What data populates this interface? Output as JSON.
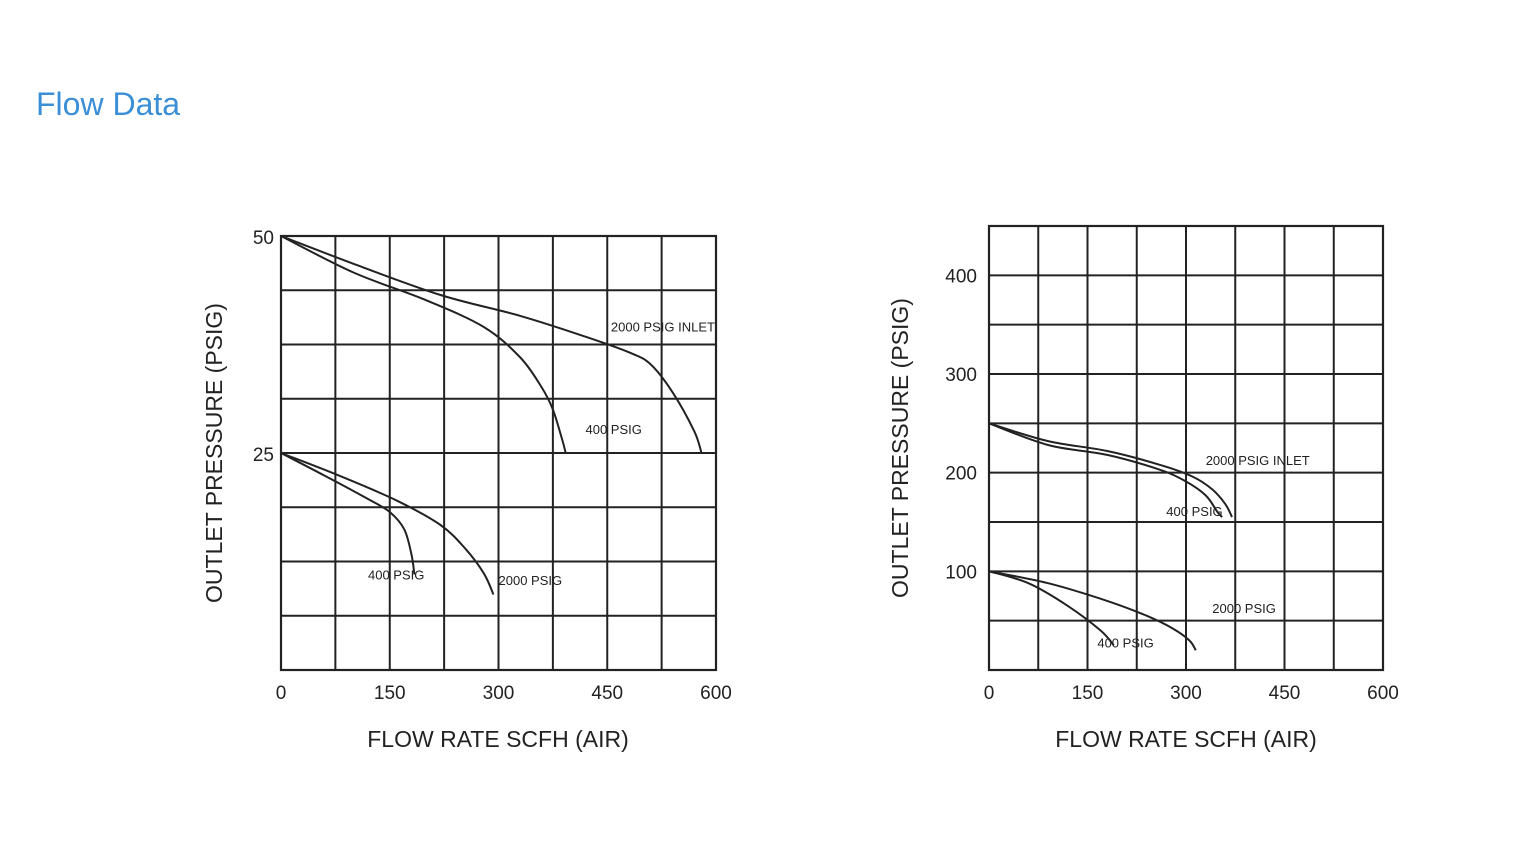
{
  "page": {
    "title": "Flow Data",
    "title_color": "#3a8fd6"
  },
  "chart_data": [
    {
      "type": "line",
      "xlabel": "FLOW  RATE SCFH (AIR)",
      "ylabel": "OUTLET  PRESSURE (PSIG)",
      "xlim": [
        0,
        600
      ],
      "ylim": [
        0,
        50
      ],
      "x_ticks": [
        "0",
        "150",
        "300",
        "450",
        "600"
      ],
      "y_ticks": [
        "25",
        "50"
      ],
      "x_tick_values": [
        0,
        150,
        300,
        450,
        600
      ],
      "y_tick_values": [
        25,
        50
      ],
      "x_grid_values": [
        0,
        75,
        150,
        225,
        300,
        375,
        450,
        525,
        600
      ],
      "y_grid_values": [
        0,
        6.25,
        12.5,
        18.75,
        25,
        31.25,
        37.5,
        43.75,
        50
      ],
      "grid": true,
      "series": [
        {
          "name": "2000 PSIG INLET",
          "points": [
            [
              0,
              50
            ],
            [
              100,
              46.8
            ],
            [
              220,
              43.2
            ],
            [
              330,
              40.8
            ],
            [
              420,
              38.4
            ],
            [
              480,
              36.6
            ],
            [
              510,
              35.2
            ],
            [
              540,
              32.0
            ],
            [
              570,
              27.5
            ],
            [
              580,
              25.0
            ]
          ]
        },
        {
          "name": "400 PSIG",
          "points": [
            [
              0,
              50
            ],
            [
              100,
              45.8
            ],
            [
              200,
              42.6
            ],
            [
              280,
              39.5
            ],
            [
              330,
              36.0
            ],
            [
              360,
              32.5
            ],
            [
              375,
              30.0
            ],
            [
              388,
              26.5
            ],
            [
              393,
              24.9
            ]
          ]
        },
        {
          "name": "2000 PSIG",
          "points": [
            [
              0,
              25
            ],
            [
              80,
              22.4
            ],
            [
              160,
              19.5
            ],
            [
              220,
              16.7
            ],
            [
              255,
              13.9
            ],
            [
              280,
              11.1
            ],
            [
              293,
              8.7
            ]
          ]
        },
        {
          "name": "400 PSIG",
          "points": [
            [
              0,
              25
            ],
            [
              60,
              22.4
            ],
            [
              120,
              19.7
            ],
            [
              150,
              18.2
            ],
            [
              170,
              16.2
            ],
            [
              180,
              13.3
            ],
            [
              184,
              11.0
            ]
          ]
        }
      ],
      "annotations": [
        {
          "text": "2000 PSIG INLET",
          "x": 455,
          "y": 39.0
        },
        {
          "text": "400 PSIG",
          "x": 420,
          "y": 27.2
        },
        {
          "text": "400 PSIG",
          "x": 120,
          "y": 10.4
        },
        {
          "text": "2000 PSIG",
          "x": 300,
          "y": 9.8
        }
      ]
    },
    {
      "type": "line",
      "xlabel": "FLOW  RATE SCFH (AIR)",
      "ylabel": "OUTLET  PRESSURE (PSIG)",
      "xlim": [
        0,
        600
      ],
      "ylim": [
        0,
        450
      ],
      "x_ticks": [
        "0",
        "150",
        "300",
        "450",
        "600"
      ],
      "y_ticks": [
        "100",
        "200",
        "300",
        "400"
      ],
      "x_tick_values": [
        0,
        150,
        300,
        450,
        600
      ],
      "y_tick_values": [
        100,
        200,
        300,
        400
      ],
      "x_grid_values": [
        0,
        75,
        150,
        225,
        300,
        375,
        450,
        525,
        600
      ],
      "y_grid_values": [
        0,
        50,
        100,
        150,
        200,
        250,
        300,
        350,
        400,
        450
      ],
      "grid": true,
      "series": [
        {
          "name": "2000 PSIG INLET",
          "points": [
            [
              0,
              250
            ],
            [
              90,
              232
            ],
            [
              180,
              222
            ],
            [
              260,
              208
            ],
            [
              310,
              196
            ],
            [
              340,
              183
            ],
            [
              360,
              168
            ],
            [
              370,
              155
            ]
          ]
        },
        {
          "name": "400 PSIG",
          "points": [
            [
              0,
              250
            ],
            [
              90,
              228
            ],
            [
              180,
              218
            ],
            [
              260,
              203
            ],
            [
              300,
              191
            ],
            [
              330,
              177
            ],
            [
              348,
              160
            ],
            [
              355,
              155
            ]
          ]
        },
        {
          "name": "2000 PSIG",
          "points": [
            [
              0,
              100
            ],
            [
              90,
              88
            ],
            [
              180,
              70
            ],
            [
              240,
              55
            ],
            [
              280,
              42
            ],
            [
              305,
              30
            ],
            [
              315,
              20
            ]
          ]
        },
        {
          "name": "400 PSIG",
          "points": [
            [
              0,
              100
            ],
            [
              60,
              88
            ],
            [
              120,
              65
            ],
            [
              170,
              40
            ],
            [
              190,
              25
            ]
          ]
        }
      ],
      "annotations": [
        {
          "text": "2000 PSIG INLET",
          "x": 330,
          "y": 208
        },
        {
          "text": "400 PSIG",
          "x": 270,
          "y": 156
        },
        {
          "text": "2000 PSIG",
          "x": 340,
          "y": 58
        },
        {
          "text": "400 PSIG",
          "x": 165,
          "y": 23
        }
      ]
    }
  ]
}
